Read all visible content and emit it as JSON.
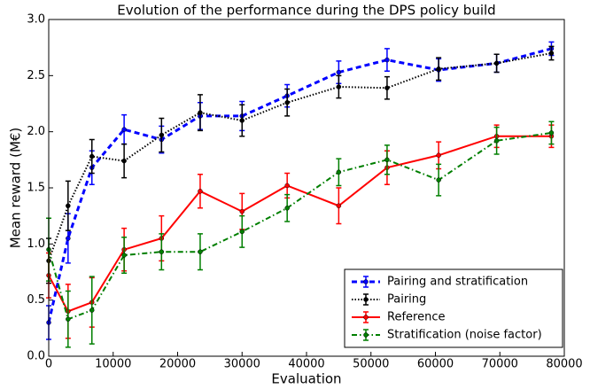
{
  "chart_data": {
    "type": "line",
    "title": "Evolution of the performance during the DPS policy build",
    "xlabel": "Evaluation",
    "ylabel": "Mean reward (M€)",
    "x": [
      0,
      3000,
      6700,
      11700,
      17500,
      23500,
      30000,
      37000,
      45000,
      52500,
      60500,
      69500,
      78000
    ],
    "series": [
      {
        "name": "Pairing and stratification",
        "color": "#0000ff",
        "linestyle": "dashed",
        "values": [
          0.3,
          1.05,
          1.68,
          2.02,
          1.93,
          2.14,
          2.14,
          2.32,
          2.53,
          2.64,
          2.55,
          2.61,
          2.74
        ],
        "errors": [
          0.15,
          0.22,
          0.15,
          0.13,
          0.12,
          0.12,
          0.13,
          0.1,
          0.1,
          0.1,
          0.1,
          0.08,
          0.06
        ]
      },
      {
        "name": "Pairing",
        "color": "#000000",
        "linestyle": "dotted",
        "values": [
          0.85,
          1.34,
          1.78,
          1.74,
          1.97,
          2.17,
          2.1,
          2.26,
          2.4,
          2.39,
          2.56,
          2.61,
          2.7
        ],
        "errors": [
          0.2,
          0.22,
          0.15,
          0.15,
          0.15,
          0.16,
          0.14,
          0.12,
          0.1,
          0.1,
          0.1,
          0.08,
          0.06
        ]
      },
      {
        "name": "Reference",
        "color": "#ff0000",
        "linestyle": "solid",
        "values": [
          0.72,
          0.4,
          0.48,
          0.95,
          1.05,
          1.47,
          1.29,
          1.52,
          1.34,
          1.68,
          1.79,
          1.96,
          1.96
        ],
        "errors": [
          0.2,
          0.24,
          0.22,
          0.19,
          0.2,
          0.15,
          0.16,
          0.11,
          0.16,
          0.15,
          0.12,
          0.1,
          0.1
        ]
      },
      {
        "name": "Stratification (noise factor)",
        "color": "#007f00",
        "linestyle": "dashdot",
        "values": [
          0.95,
          0.33,
          0.41,
          0.9,
          0.93,
          0.93,
          1.11,
          1.32,
          1.64,
          1.75,
          1.57,
          1.92,
          1.99
        ],
        "errors": [
          0.28,
          0.25,
          0.3,
          0.16,
          0.16,
          0.16,
          0.14,
          0.12,
          0.12,
          0.13,
          0.14,
          0.12,
          0.1
        ]
      }
    ],
    "xlim": [
      0,
      80000
    ],
    "ylim": [
      0,
      3
    ],
    "xticks": [
      0,
      10000,
      20000,
      30000,
      40000,
      50000,
      60000,
      70000,
      80000
    ],
    "yticks": [
      {
        "value": 0,
        "label": "0.0"
      },
      0.5,
      {
        "value": 1,
        "label": "1.0"
      },
      1.5,
      {
        "value": 2,
        "label": "2.0"
      },
      2.5,
      {
        "value": 3,
        "label": "3.0"
      }
    ],
    "grid": false,
    "legend": "lower right"
  }
}
